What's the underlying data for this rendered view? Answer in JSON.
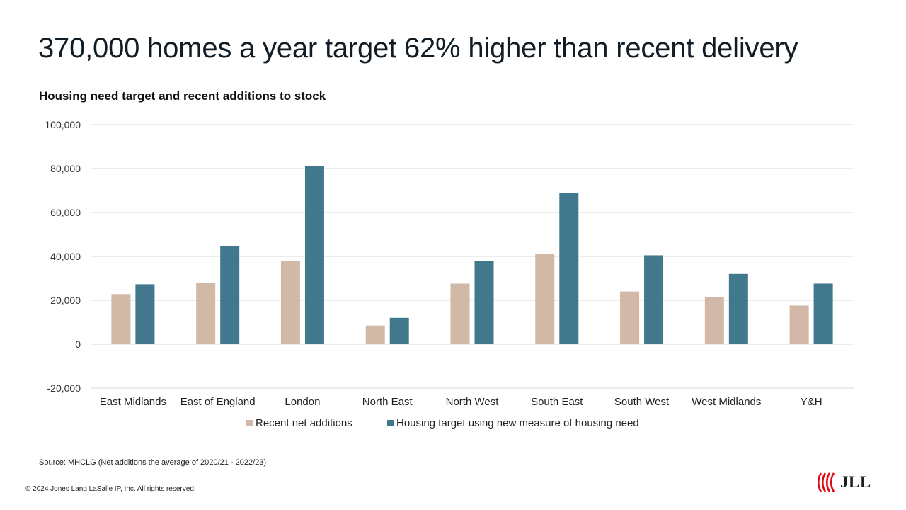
{
  "slide": {
    "title": "370,000 homes a year target 62% higher than recent delivery",
    "source": "Source: MHCLG (Net additions the average of 2020/21 - 2022/23)",
    "copyright": "© 2024 Jones Lang LaSalle IP, Inc. All rights reserved.",
    "logo": {
      "text": "JLL",
      "icon": "jll-logo-icon",
      "color": "#e30613"
    }
  },
  "chart_data": {
    "type": "bar",
    "title": "Housing need target and recent additions to stock",
    "categories": [
      "East Midlands",
      "East of England",
      "London",
      "North East",
      "North West",
      "South East",
      "South West",
      "West Midlands",
      "Y&H"
    ],
    "series": [
      {
        "name": "Recent net additions",
        "color": "#d2b8a6",
        "values": [
          22800,
          28000,
          38000,
          8500,
          27600,
          41000,
          24000,
          21500,
          17600
        ]
      },
      {
        "name": "Housing target using new measure of housing need",
        "color": "#41788d",
        "values": [
          27300,
          44800,
          81000,
          12000,
          38000,
          69000,
          40500,
          32000,
          27600
        ]
      }
    ],
    "yticks": [
      "-20,000",
      "0",
      "20,000",
      "40,000",
      "60,000",
      "80,000",
      "100,000"
    ],
    "ytick_values": [
      -20000,
      0,
      20000,
      40000,
      60000,
      80000,
      100000
    ],
    "ylim": [
      -20000,
      100000
    ],
    "grid": true,
    "legend": "bottom"
  }
}
